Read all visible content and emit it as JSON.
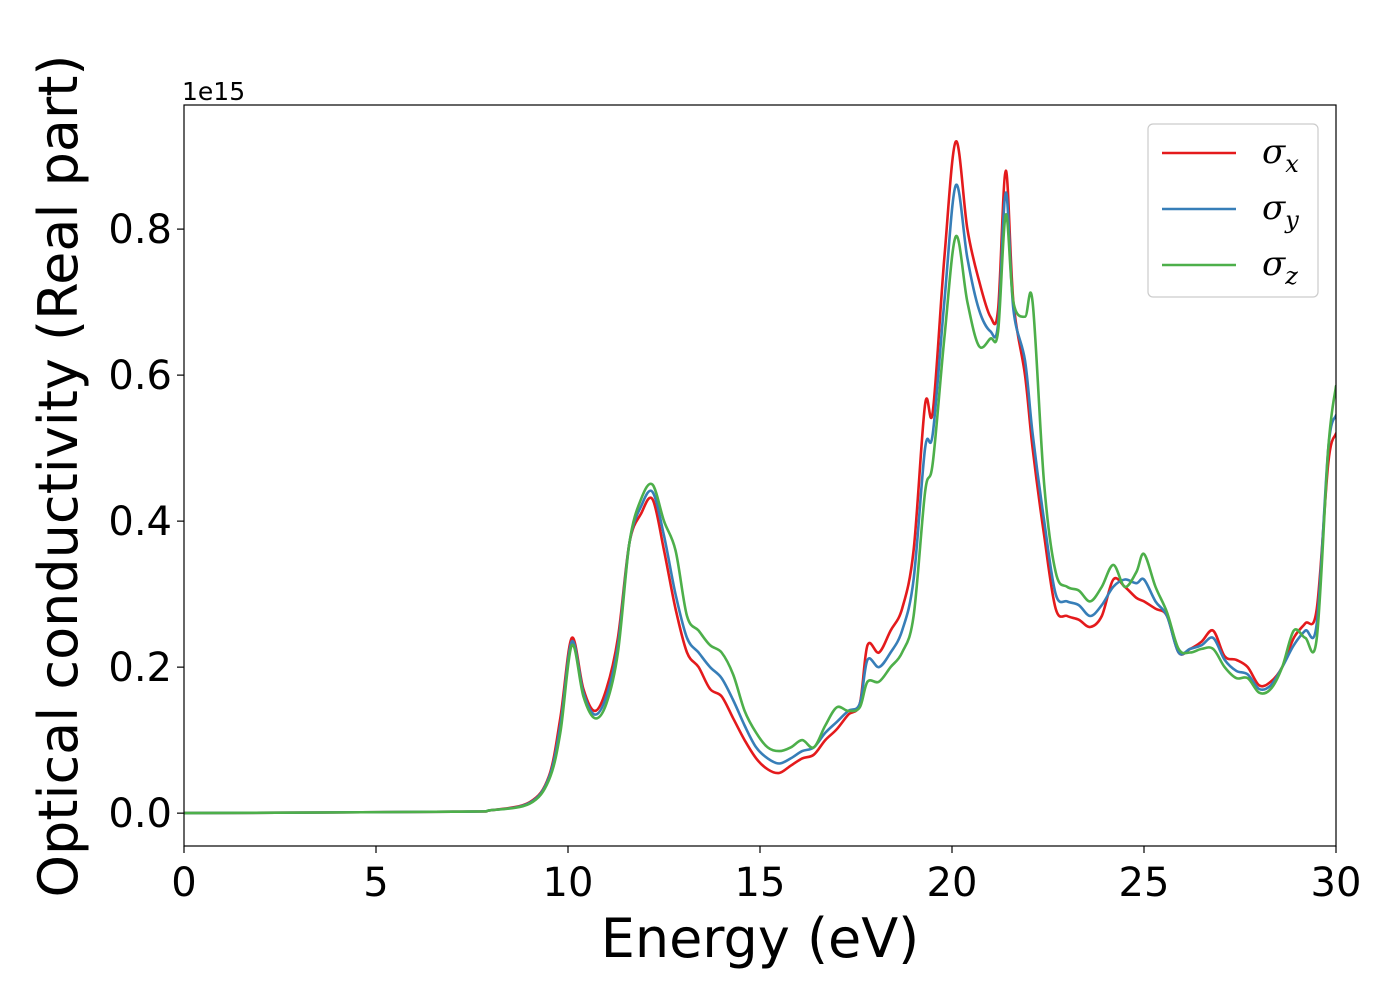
{
  "chart_data": {
    "type": "line",
    "title": "",
    "xlabel": "Energy (eV)",
    "ylabel": "Optical conductivity (Real part)",
    "y_offset_label": "1e15",
    "y_multiplier": 1000000000000000.0,
    "xlim": [
      0,
      30
    ],
    "ylim": [
      -0.045,
      0.97
    ],
    "xticks": [
      0,
      5,
      10,
      15,
      20,
      25,
      30
    ],
    "xtick_labels": [
      "0",
      "5",
      "10",
      "15",
      "20",
      "25",
      "30"
    ],
    "yticks": [
      0.0,
      0.2,
      0.4,
      0.6,
      0.8
    ],
    "ytick_labels": [
      "0.0",
      "0.2",
      "0.4",
      "0.6",
      "0.8"
    ],
    "grid": false,
    "legend_position": "top-right",
    "x": [
      0,
      7,
      8,
      9,
      9.5,
      9.8,
      10.1,
      10.4,
      10.7,
      11.0,
      11.3,
      11.6,
      11.9,
      12.2,
      12.5,
      12.8,
      13.1,
      13.4,
      13.7,
      14.0,
      14.3,
      14.6,
      14.9,
      15.2,
      15.5,
      15.8,
      16.1,
      16.4,
      16.7,
      17.0,
      17.3,
      17.6,
      17.8,
      18.1,
      18.4,
      18.7,
      19.0,
      19.3,
      19.5,
      19.8,
      20.1,
      20.4,
      20.7,
      21.0,
      21.2,
      21.4,
      21.6,
      21.9,
      22.1,
      22.4,
      22.7,
      23.0,
      23.3,
      23.6,
      23.9,
      24.2,
      24.5,
      24.8,
      25.0,
      25.3,
      25.6,
      25.9,
      26.2,
      26.5,
      26.8,
      27.1,
      27.4,
      27.7,
      28.0,
      28.3,
      28.6,
      28.9,
      29.2,
      29.5,
      29.8,
      30.0
    ],
    "series": [
      {
        "name": "σx",
        "label_base": "σ",
        "label_sub": "x",
        "color": "#e41a1c",
        "values": [
          0.0,
          0.002,
          0.004,
          0.015,
          0.05,
          0.13,
          0.24,
          0.17,
          0.14,
          0.17,
          0.24,
          0.37,
          0.41,
          0.43,
          0.36,
          0.28,
          0.22,
          0.2,
          0.17,
          0.16,
          0.13,
          0.1,
          0.075,
          0.06,
          0.055,
          0.065,
          0.075,
          0.08,
          0.1,
          0.115,
          0.135,
          0.15,
          0.23,
          0.22,
          0.25,
          0.28,
          0.36,
          0.56,
          0.55,
          0.76,
          0.92,
          0.8,
          0.73,
          0.68,
          0.69,
          0.88,
          0.7,
          0.6,
          0.5,
          0.38,
          0.28,
          0.27,
          0.265,
          0.255,
          0.27,
          0.32,
          0.31,
          0.295,
          0.29,
          0.28,
          0.27,
          0.22,
          0.225,
          0.235,
          0.25,
          0.215,
          0.21,
          0.2,
          0.175,
          0.18,
          0.2,
          0.24,
          0.26,
          0.28,
          0.48,
          0.52
        ]
      },
      {
        "name": "σy",
        "label_base": "σ",
        "label_sub": "y",
        "color": "#377eb8",
        "values": [
          0.0,
          0.002,
          0.004,
          0.014,
          0.048,
          0.12,
          0.235,
          0.165,
          0.135,
          0.16,
          0.23,
          0.37,
          0.42,
          0.44,
          0.38,
          0.3,
          0.24,
          0.22,
          0.2,
          0.185,
          0.155,
          0.12,
          0.09,
          0.075,
          0.068,
          0.075,
          0.085,
          0.09,
          0.11,
          0.125,
          0.14,
          0.15,
          0.21,
          0.2,
          0.22,
          0.25,
          0.32,
          0.5,
          0.52,
          0.7,
          0.86,
          0.76,
          0.69,
          0.66,
          0.67,
          0.85,
          0.69,
          0.62,
          0.52,
          0.4,
          0.3,
          0.29,
          0.285,
          0.27,
          0.285,
          0.31,
          0.32,
          0.315,
          0.32,
          0.29,
          0.27,
          0.22,
          0.225,
          0.23,
          0.24,
          0.21,
          0.195,
          0.19,
          0.17,
          0.175,
          0.2,
          0.23,
          0.25,
          0.26,
          0.5,
          0.545
        ]
      },
      {
        "name": "σz",
        "label_base": "σ",
        "label_sub": "z",
        "color": "#4daf4a",
        "values": [
          0.0,
          0.002,
          0.004,
          0.013,
          0.045,
          0.11,
          0.23,
          0.16,
          0.13,
          0.15,
          0.22,
          0.37,
          0.43,
          0.45,
          0.4,
          0.36,
          0.27,
          0.25,
          0.23,
          0.22,
          0.19,
          0.14,
          0.11,
          0.09,
          0.085,
          0.09,
          0.1,
          0.09,
          0.12,
          0.145,
          0.14,
          0.145,
          0.18,
          0.18,
          0.2,
          0.22,
          0.27,
          0.44,
          0.48,
          0.65,
          0.79,
          0.7,
          0.64,
          0.65,
          0.66,
          0.82,
          0.7,
          0.68,
          0.7,
          0.45,
          0.33,
          0.31,
          0.305,
          0.29,
          0.31,
          0.34,
          0.31,
          0.33,
          0.355,
          0.31,
          0.275,
          0.225,
          0.22,
          0.225,
          0.225,
          0.2,
          0.185,
          0.185,
          0.165,
          0.17,
          0.2,
          0.25,
          0.24,
          0.24,
          0.5,
          0.585
        ]
      }
    ]
  }
}
